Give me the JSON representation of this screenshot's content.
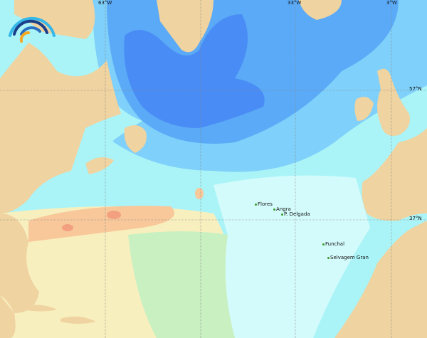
{
  "map": {
    "graticule": {
      "longitudes": [
        "63°W",
        "33°W",
        "3°W"
      ],
      "latitudes": [
        "57°N",
        "37°N"
      ]
    },
    "places": [
      "Flores",
      "Angra",
      "P. Delgada",
      "Funchal",
      "Selvagem Gran"
    ],
    "colors": {
      "land": "#efd3a0",
      "deep_blue": "#4a8cf5",
      "mid_blue": "#5aaaf7",
      "light_blue": "#7fd0fa",
      "cyan": "#aaf4f8",
      "pale_cyan": "#d4fbfb",
      "green": "#c8f0c0",
      "yellow": "#f8efbf",
      "orange": "#f8c89a",
      "red": "#f2a080"
    },
    "logo": "rainbow-arc-logo"
  }
}
